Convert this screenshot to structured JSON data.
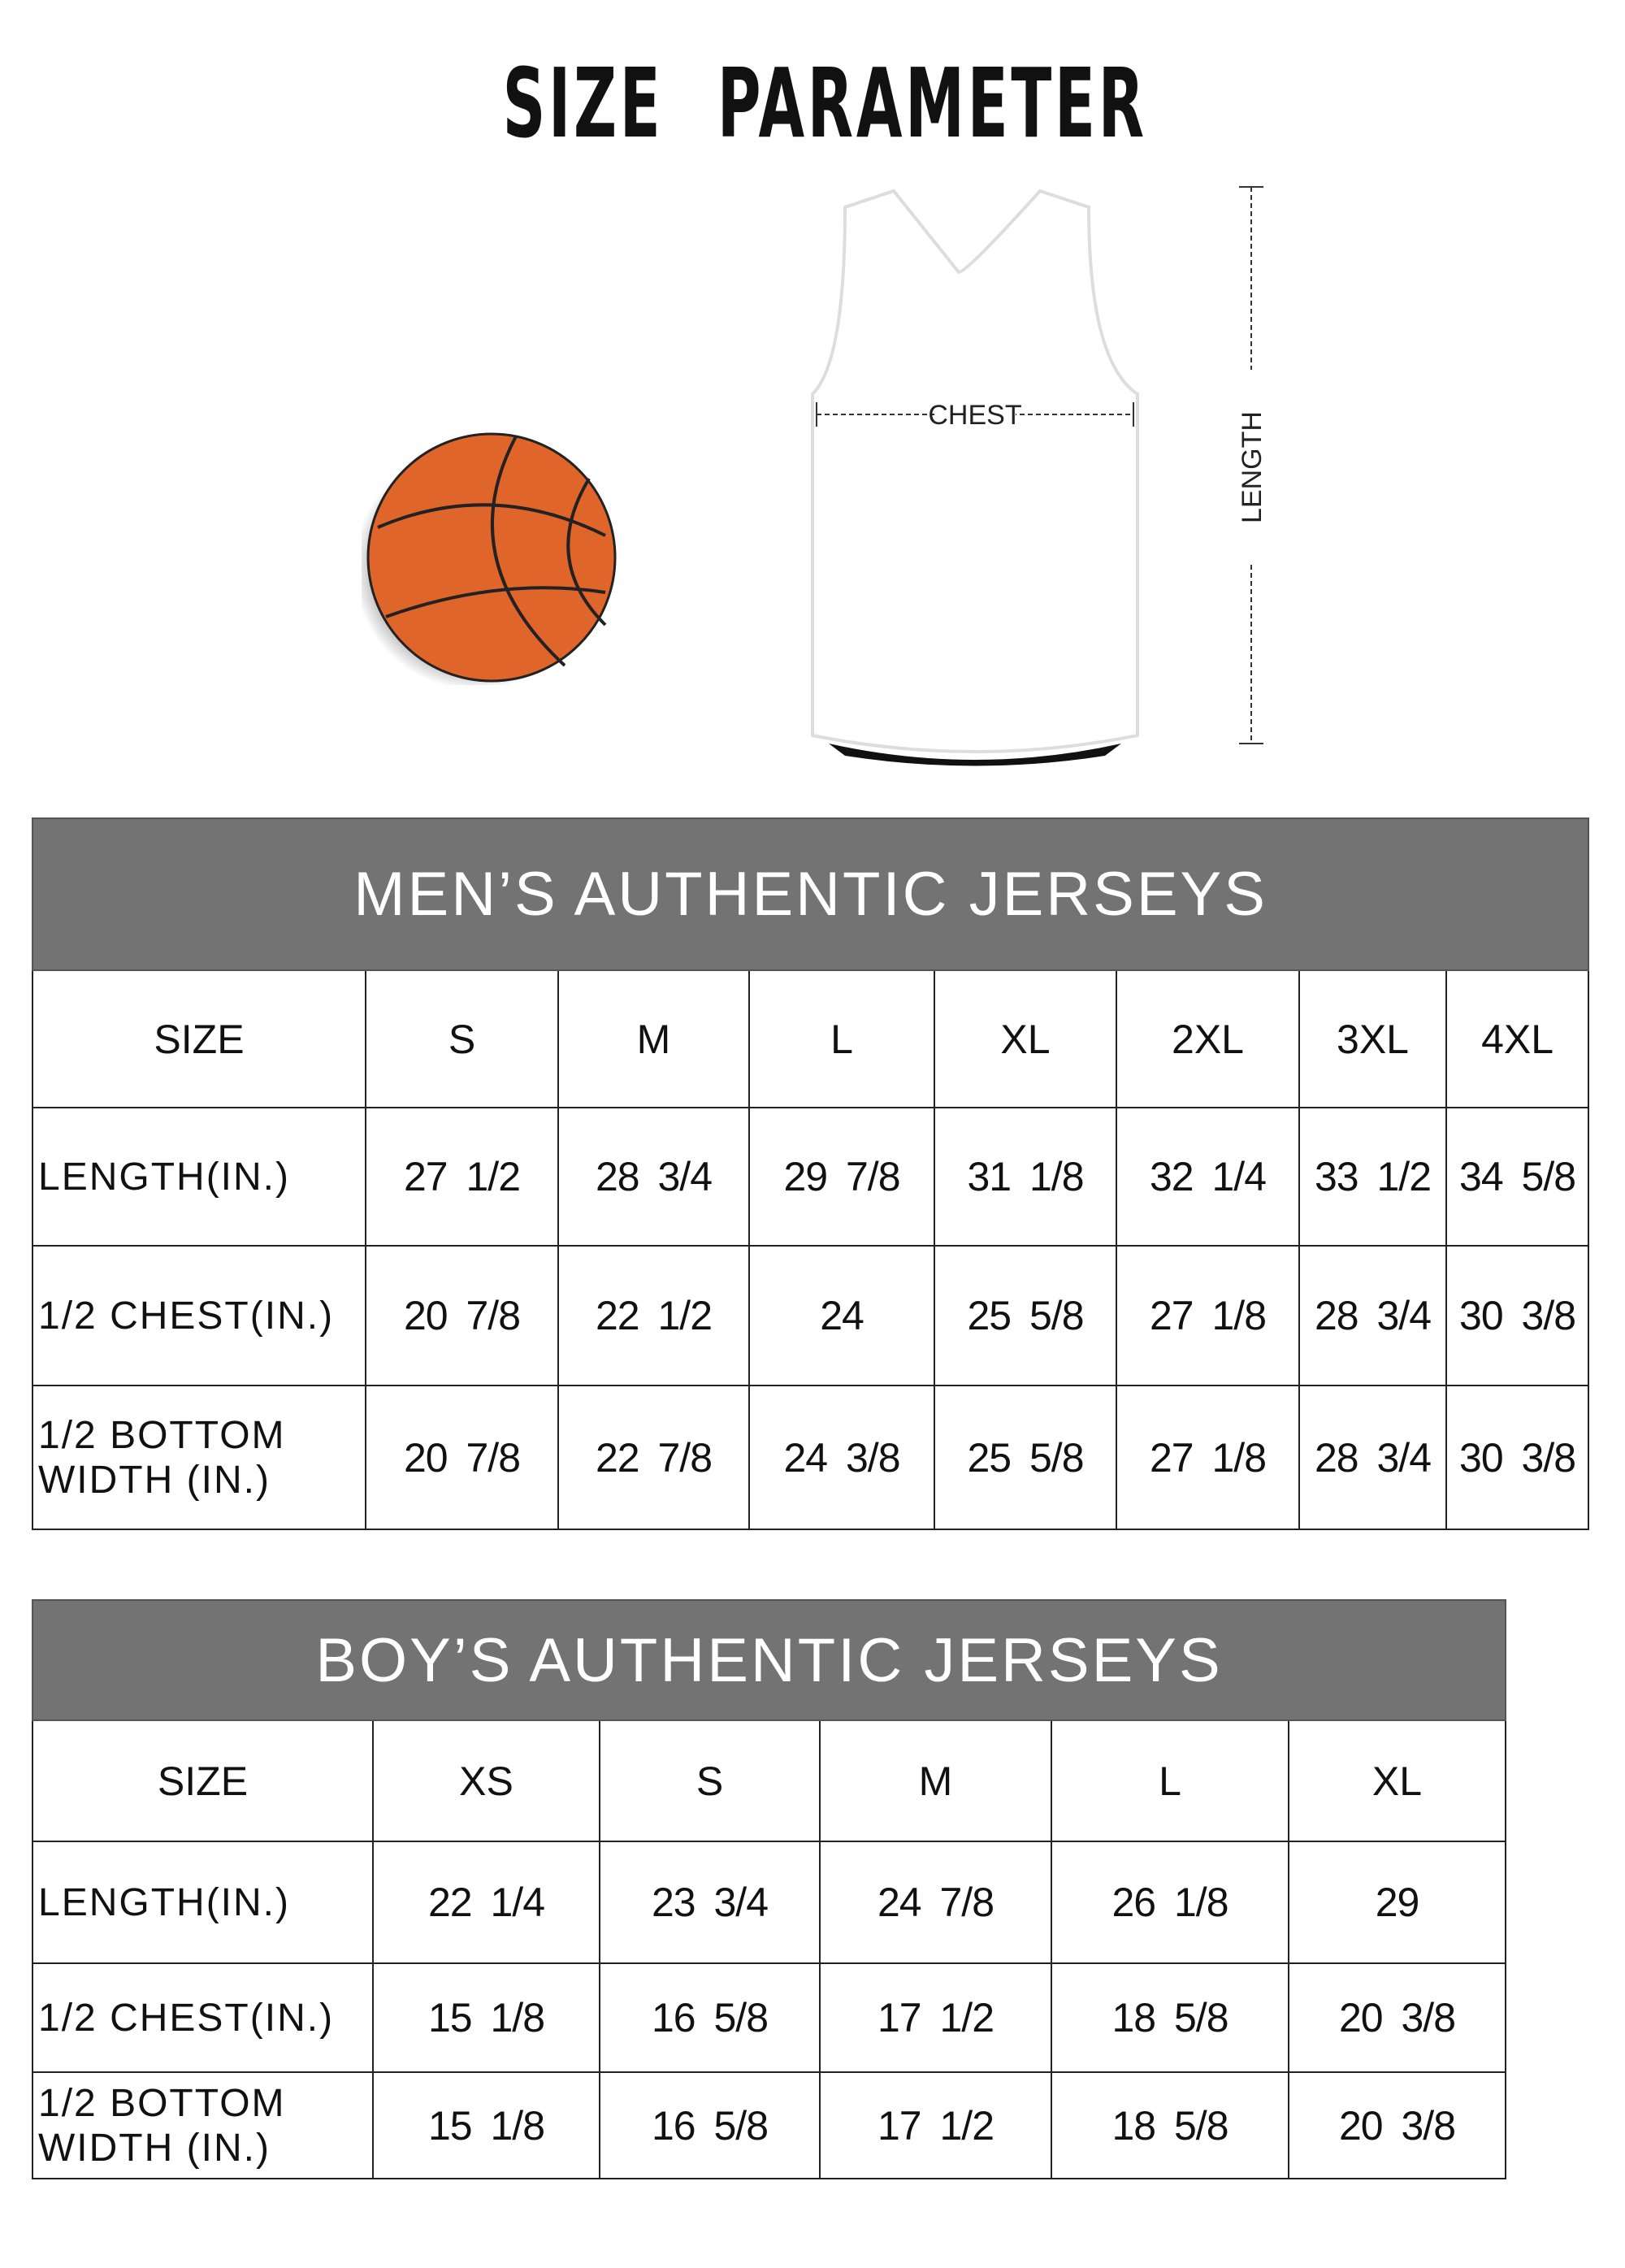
{
  "title": "SIZE PARAMETER",
  "diagram": {
    "chest_label": "CHEST",
    "length_label": "LENGTH",
    "ball_color": "#e0652a"
  },
  "header_color": "#737373",
  "men": {
    "title": "MEN’S AUTHENTIC JERSEYS",
    "size_label": "SIZE",
    "sizes": [
      "S",
      "M",
      "L",
      "XL",
      "2XL",
      "3XL",
      "4XL"
    ],
    "rows": [
      {
        "label": "LENGTH(IN.)",
        "values": [
          "27 1/2",
          "28 3/4",
          "29 7/8",
          "31 1/8",
          "32 1/4",
          "33 1/2",
          "34 5/8"
        ]
      },
      {
        "label": "1/2 CHEST(IN.)",
        "values": [
          "20 7/8",
          "22 1/2",
          "24",
          "25 5/8",
          "27 1/8",
          "28 3/4",
          "30 3/8"
        ]
      },
      {
        "label": "1/2 BOTTOM WIDTH (IN.)",
        "values": [
          "20 7/8",
          "22 7/8",
          "24 3/8",
          "25 5/8",
          "27 1/8",
          "28 3/4",
          "30 3/8"
        ]
      }
    ]
  },
  "boy": {
    "title": "BOY’S AUTHENTIC JERSEYS",
    "size_label": "SIZE",
    "sizes": [
      "XS",
      "S",
      "M",
      "L",
      "XL"
    ],
    "rows": [
      {
        "label": "LENGTH(IN.)",
        "values": [
          "22 1/4",
          "23 3/4",
          "24 7/8",
          "26 1/8",
          "29"
        ]
      },
      {
        "label": "1/2 CHEST(IN.)",
        "values": [
          "15 1/8",
          "16 5/8",
          "17 1/2",
          "18 5/8",
          "20 3/8"
        ]
      },
      {
        "label": "1/2 BOTTOM WIDTH (IN.)",
        "values": [
          "15 1/8",
          "16 5/8",
          "17 1/2",
          "18 5/8",
          "20 3/8"
        ]
      }
    ]
  }
}
